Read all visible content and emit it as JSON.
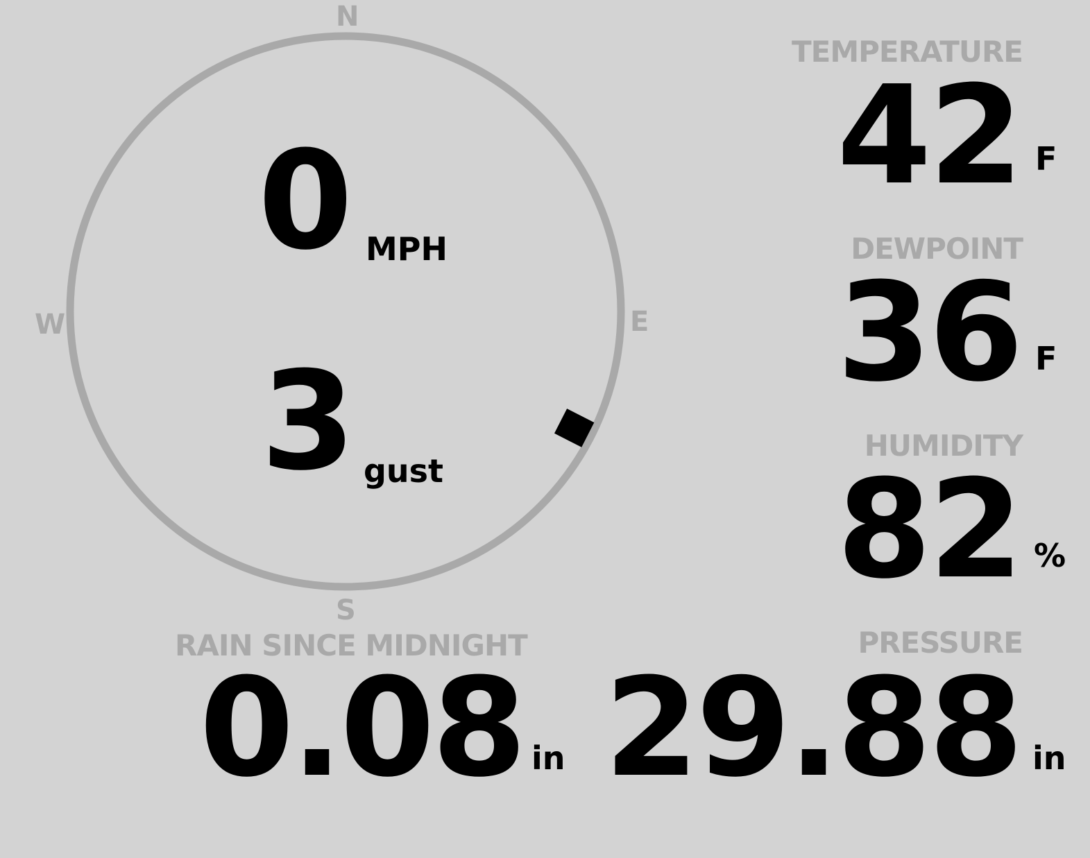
{
  "wind": {
    "speed": "0",
    "speed_unit": "MPH",
    "gust": "3",
    "gust_unit": "gust",
    "direction_degrees": 117,
    "cardinals": {
      "n": "N",
      "e": "E",
      "s": "S",
      "w": "W"
    }
  },
  "temperature": {
    "label": "TEMPERATURE",
    "value": "42",
    "unit": "F"
  },
  "dewpoint": {
    "label": "DEWPOINT",
    "value": "36",
    "unit": "F"
  },
  "humidity": {
    "label": "HUMIDITY",
    "value": "82",
    "unit": "%"
  },
  "rain": {
    "label": "RAIN SINCE MIDNIGHT",
    "value": "0.08",
    "unit": "in"
  },
  "pressure": {
    "label": "PRESSURE",
    "value": "29.88",
    "unit": "in"
  },
  "colors": {
    "background": "#d3d3d3",
    "label": "#a9a9a9",
    "value": "#000000"
  }
}
